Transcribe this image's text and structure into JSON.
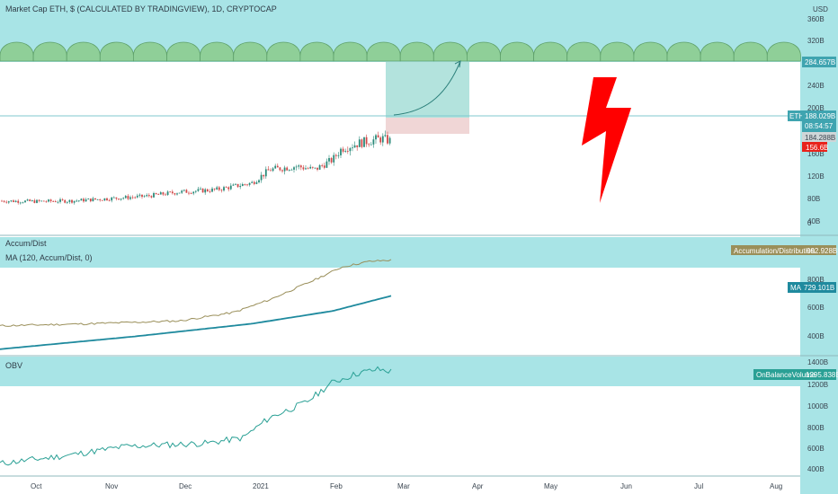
{
  "header": {
    "title": "Market Cap ETH, $ (CALCULATED BY TRADINGVIEW), 1D, CRYPTOCAP",
    "currency": "USD"
  },
  "colors": {
    "panel_bg": "#a8e4e6",
    "arch_fill": "#8fcf98",
    "arch_stroke": "#5ea06a",
    "up_candle": "#2a8a7a",
    "down_candle": "#d14848",
    "accum_line": "#9a8f5a",
    "ma_line": "#1f8a9e",
    "obv_line": "#2aa095",
    "eth_badge": "#3fa4b0",
    "price_badge": "#cccccc",
    "alert_badge": "#e8231c",
    "target_badge": "#3fa4b0",
    "bolt": "#ff0000",
    "target_box": "#9ad9d2",
    "stop_box": "#f0d6d6"
  },
  "main_axis": {
    "ticks": [
      "360B",
      "320B",
      "240B",
      "200B",
      "160B",
      "120B",
      "80B",
      "40B",
      "0"
    ]
  },
  "main_badges": {
    "target": "284.657B",
    "eth_label": "ETH",
    "eth_value": "188.029B",
    "countdown": "08:54:57",
    "price_below": "184.288B",
    "alert": "156.6B"
  },
  "accum_panel": {
    "title": "Accum/Dist",
    "ma_title": "MA (120, Accum/Dist, 0)",
    "badge_label": "Accumulation/Distribution",
    "badge_value": "992.928B",
    "ma_badge_label": "MA",
    "ma_badge_value": "729.101B",
    "ticks": [
      "800B",
      "600B",
      "400B"
    ]
  },
  "obv_panel": {
    "title": "OBV",
    "badge_label": "OnBalanceVolume",
    "badge_value": "1295.838B",
    "ticks": [
      "1400B",
      "1200B",
      "1000B",
      "800B",
      "600B",
      "400B"
    ]
  },
  "time_axis": {
    "labels": [
      "Oct",
      "Nov",
      "Dec",
      "2021",
      "Feb",
      "Mar",
      "Apr",
      "May",
      "Jun",
      "Jul",
      "Aug"
    ]
  },
  "chart_data": [
    {
      "type": "line",
      "title": "Market Cap ETH, $ (CALCULATED BY TRADINGVIEW), 1D, CRYPTOCAP",
      "x": [
        "Oct",
        "Nov",
        "Dec",
        "2021",
        "Feb",
        "Mar"
      ],
      "series": [
        {
          "name": "ETH",
          "values": [
            42,
            45,
            66,
            90,
            170,
            188
          ]
        }
      ],
      "ylim": [
        0,
        370
      ],
      "annotations": {
        "target": 284.657,
        "last": 188.029,
        "alert": 156.6
      }
    },
    {
      "type": "line",
      "title": "Accum/Dist",
      "x": [
        "Oct",
        "Nov",
        "Dec",
        "2021",
        "Feb",
        "Mar"
      ],
      "series": [
        {
          "name": "Accum/Dist",
          "values": [
            480,
            490,
            520,
            640,
            900,
            992.928
          ]
        },
        {
          "name": "MA (120, Accum/Dist, 0)",
          "values": [
            330,
            420,
            470,
            540,
            660,
            729.101
          ]
        }
      ],
      "ylim": [
        300,
        1000
      ]
    },
    {
      "type": "line",
      "title": "OBV",
      "x": [
        "Oct",
        "Nov",
        "Dec",
        "2021",
        "Feb",
        "Mar"
      ],
      "series": [
        {
          "name": "OBV",
          "values": [
            430,
            560,
            620,
            800,
            1250,
            1295.838
          ]
        }
      ],
      "ylim": [
        380,
        1420
      ]
    }
  ]
}
